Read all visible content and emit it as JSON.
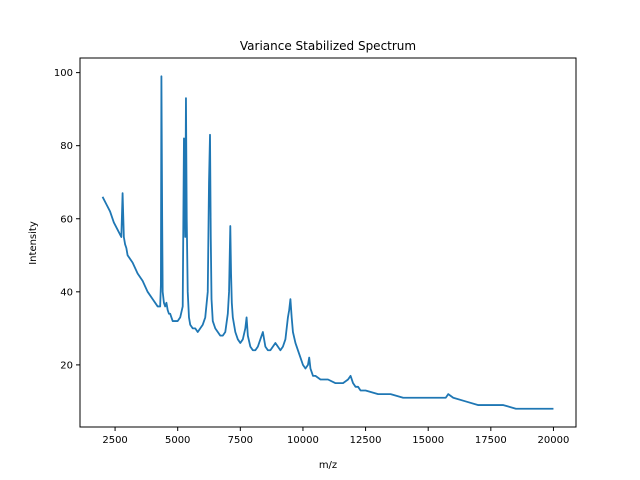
{
  "chart_data": {
    "type": "line",
    "title": "Variance Stabilized Spectrum",
    "xlabel": "m/z",
    "ylabel": "Intensity",
    "xlim": [
      1100,
      20900
    ],
    "ylim": [
      3,
      104
    ],
    "xticks": [
      2500,
      5000,
      7500,
      10000,
      12500,
      15000,
      17500,
      20000
    ],
    "yticks": [
      20,
      40,
      60,
      80,
      100
    ],
    "grid": false,
    "color": "#1f77b4",
    "series": [
      {
        "x": [
          2000,
          2150,
          2300,
          2450,
          2600,
          2750,
          2800,
          2850,
          2900,
          2950,
          3000,
          3200,
          3400,
          3600,
          3800,
          4000,
          4200,
          4300,
          4330,
          4350,
          4380,
          4400,
          4450,
          4500,
          4550,
          4600,
          4650,
          4700,
          4750,
          4800,
          4900,
          5000,
          5100,
          5200,
          5250,
          5300,
          5330,
          5360,
          5400,
          5450,
          5500,
          5600,
          5700,
          5800,
          5900,
          6000,
          6100,
          6200,
          6250,
          6290,
          6320,
          6350,
          6400,
          6500,
          6600,
          6700,
          6800,
          6900,
          7000,
          7050,
          7100,
          7130,
          7160,
          7200,
          7300,
          7400,
          7500,
          7600,
          7700,
          7750,
          7800,
          7900,
          8000,
          8100,
          8200,
          8300,
          8400,
          8500,
          8600,
          8700,
          8800,
          8900,
          9000,
          9100,
          9200,
          9300,
          9400,
          9450,
          9500,
          9550,
          9600,
          9700,
          9800,
          9900,
          10000,
          10100,
          10200,
          10250,
          10300,
          10400,
          10500,
          10700,
          11000,
          11300,
          11600,
          11800,
          11900,
          12000,
          12100,
          12200,
          12300,
          12500,
          13000,
          13500,
          14000,
          14500,
          15000,
          15500,
          15700,
          15800,
          16000,
          16500,
          17000,
          17500,
          18000,
          18500,
          19000,
          19500,
          20000
        ],
        "values": [
          66,
          64,
          62,
          59,
          57,
          55,
          67,
          55,
          53,
          52,
          50,
          48,
          45,
          43,
          40,
          38,
          36,
          36,
          42,
          99,
          60,
          40,
          37,
          36,
          37,
          35,
          34,
          34,
          33,
          32,
          32,
          32,
          33,
          36,
          82,
          55,
          93,
          60,
          40,
          33,
          31,
          30,
          30,
          29,
          30,
          31,
          33,
          40,
          70,
          83,
          55,
          38,
          32,
          30,
          29,
          28,
          28,
          29,
          34,
          40,
          58,
          45,
          37,
          33,
          29,
          27,
          26,
          27,
          30,
          33,
          28,
          25,
          24,
          24,
          25,
          27,
          29,
          25,
          24,
          24,
          25,
          26,
          25,
          24,
          25,
          27,
          33,
          35,
          38,
          33,
          29,
          26,
          24,
          22,
          20,
          19,
          20,
          22,
          19,
          17,
          17,
          16,
          16,
          15,
          15,
          16,
          17,
          15,
          14,
          14,
          13,
          13,
          12,
          12,
          11,
          11,
          11,
          11,
          11,
          12,
          11,
          10,
          9,
          9,
          9,
          8,
          8,
          8,
          8
        ]
      }
    ]
  }
}
